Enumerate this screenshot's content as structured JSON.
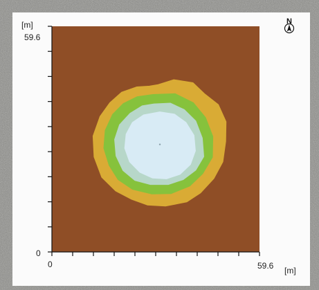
{
  "chart_data": {
    "type": "heatmap",
    "title": "",
    "xlabel": "[m]",
    "ylabel": "[m]",
    "xlim": [
      0,
      59.6
    ],
    "ylim": [
      0,
      59.6
    ],
    "x_tick_labels": [
      "0",
      "59.6"
    ],
    "y_tick_labels": [
      "0",
      "59.6"
    ],
    "x_minor_tick_count": 11,
    "y_minor_tick_count": 10,
    "grid": false,
    "legend": "none",
    "compass_label": "N",
    "colors": {
      "background": "#8f4e26",
      "level_1": "#d9ab35",
      "level_2": "#86c23c",
      "level_3": "#b7d7c9",
      "level_4": "#d8ebf5"
    },
    "zones": [
      {
        "level": 1,
        "color": "#d9ab35",
        "ring": [
          [
            30.5,
            44.2
          ],
          [
            35.0,
            45.5
          ],
          [
            40.5,
            44.7
          ],
          [
            43.8,
            41.8
          ],
          [
            47.8,
            38.9
          ],
          [
            50.0,
            34.4
          ],
          [
            49.9,
            29.2
          ],
          [
            49.1,
            23.8
          ],
          [
            46.5,
            19.4
          ],
          [
            42.7,
            15.6
          ],
          [
            38.7,
            13.2
          ],
          [
            32.6,
            12.1
          ],
          [
            27.4,
            12.4
          ],
          [
            22.9,
            13.9
          ],
          [
            18.3,
            16.1
          ],
          [
            14.3,
            19.7
          ],
          [
            12.1,
            25.1
          ],
          [
            11.8,
            30.6
          ],
          [
            13.8,
            35.8
          ],
          [
            16.6,
            39.4
          ],
          [
            20.0,
            42.2
          ],
          [
            24.4,
            43.6
          ],
          [
            28.0,
            43.8
          ]
        ]
      },
      {
        "level": 2,
        "color": "#86c23c",
        "ring": [
          [
            29.0,
            41.6
          ],
          [
            35.4,
            41.8
          ],
          [
            40.6,
            39.4
          ],
          [
            44.1,
            35.5
          ],
          [
            46.2,
            30.5
          ],
          [
            46.1,
            25.0
          ],
          [
            43.3,
            20.7
          ],
          [
            39.6,
            17.4
          ],
          [
            34.2,
            15.4
          ],
          [
            28.7,
            15.3
          ],
          [
            23.2,
            16.5
          ],
          [
            19.0,
            19.1
          ],
          [
            16.4,
            22.9
          ],
          [
            14.9,
            27.4
          ],
          [
            15.3,
            32.1
          ],
          [
            17.4,
            36.3
          ],
          [
            20.5,
            39.2
          ],
          [
            24.5,
            41.0
          ]
        ]
      },
      {
        "level": 3,
        "color": "#b7d7c9",
        "ring": [
          [
            29.3,
            39.1
          ],
          [
            34.0,
            39.3
          ],
          [
            38.0,
            37.6
          ],
          [
            41.3,
            34.6
          ],
          [
            43.2,
            30.1
          ],
          [
            43.6,
            25.2
          ],
          [
            41.3,
            21.6
          ],
          [
            37.7,
            19.1
          ],
          [
            33.4,
            17.8
          ],
          [
            28.3,
            17.8
          ],
          [
            23.8,
            18.9
          ],
          [
            20.4,
            21.5
          ],
          [
            18.4,
            25.4
          ],
          [
            18.0,
            29.7
          ],
          [
            19.4,
            33.6
          ],
          [
            22.4,
            36.6
          ],
          [
            25.9,
            38.6
          ]
        ]
      },
      {
        "level": 4,
        "color": "#d8ebf5",
        "ring": [
          [
            31.0,
            37.0
          ],
          [
            35.2,
            36.4
          ],
          [
            38.5,
            34.2
          ],
          [
            40.8,
            30.8
          ],
          [
            41.2,
            26.7
          ],
          [
            39.8,
            23.1
          ],
          [
            36.8,
            20.5
          ],
          [
            32.9,
            19.3
          ],
          [
            28.9,
            19.5
          ],
          [
            25.3,
            21.0
          ],
          [
            22.3,
            23.8
          ],
          [
            20.9,
            27.4
          ],
          [
            21.3,
            31.1
          ],
          [
            23.1,
            34.2
          ],
          [
            26.3,
            36.2
          ]
        ]
      }
    ],
    "center_marker": {
      "x": 31.0,
      "y": 28.4
    }
  }
}
